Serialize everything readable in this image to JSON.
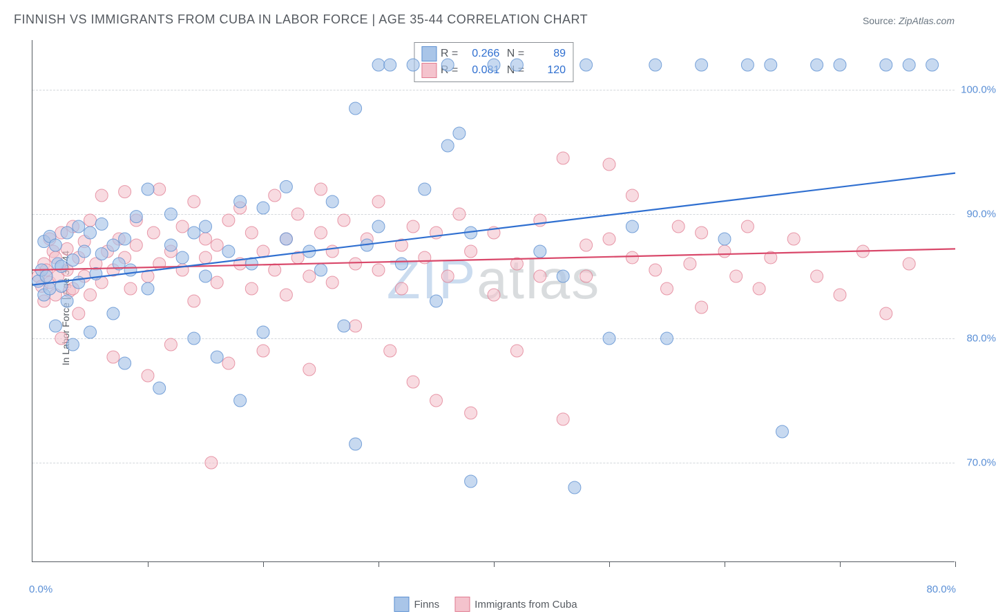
{
  "title": "FINNISH VS IMMIGRANTS FROM CUBA IN LABOR FORCE | AGE 35-44 CORRELATION CHART",
  "source_label": "Source:",
  "source_value": "ZipAtlas.com",
  "y_axis_label": "In Labor Force | Age 35-44",
  "watermark_a": "ZIP",
  "watermark_b": "atlas",
  "xlim": [
    0,
    80
  ],
  "ylim": [
    62,
    104
  ],
  "x_ticks_at": [
    0,
    10,
    20,
    30,
    40,
    50,
    60,
    70,
    80
  ],
  "x_tick_labels_shown": {
    "0": "0.0%",
    "80": "80.0%"
  },
  "y_gridlines": [
    70,
    80,
    90,
    100
  ],
  "y_tick_labels": {
    "70": "70.0%",
    "80": "80.0%",
    "90": "90.0%",
    "100": "100.0%"
  },
  "series": {
    "finns": {
      "label": "Finns",
      "fill": "#a9c5e8",
      "stroke": "#5b8fd1",
      "line_color": "#2f6fd0",
      "marker_radius": 9,
      "marker_opacity": 0.65,
      "line_width": 2.2,
      "R": "0.266",
      "N": "89",
      "trend": {
        "x1": 0,
        "y1": 84.3,
        "x2": 80,
        "y2": 93.3
      },
      "points": [
        [
          0.5,
          84.6
        ],
        [
          0.8,
          85.5
        ],
        [
          1.0,
          83.5
        ],
        [
          1.0,
          87.8
        ],
        [
          1.2,
          85.0
        ],
        [
          1.5,
          84.0
        ],
        [
          1.5,
          88.2
        ],
        [
          2.0,
          87.5
        ],
        [
          2.0,
          81.0
        ],
        [
          2.2,
          86.0
        ],
        [
          2.5,
          84.2
        ],
        [
          2.5,
          85.8
        ],
        [
          3.0,
          88.5
        ],
        [
          3.0,
          83.0
        ],
        [
          3.5,
          79.5
        ],
        [
          3.5,
          86.3
        ],
        [
          4.0,
          89.0
        ],
        [
          4.0,
          84.5
        ],
        [
          4.5,
          87.0
        ],
        [
          5.0,
          80.5
        ],
        [
          5.0,
          88.5
        ],
        [
          5.5,
          85.2
        ],
        [
          6.0,
          86.8
        ],
        [
          6.0,
          89.2
        ],
        [
          7.0,
          82.0
        ],
        [
          7.0,
          87.5
        ],
        [
          7.5,
          86.0
        ],
        [
          8.0,
          78.0
        ],
        [
          8.0,
          88.0
        ],
        [
          8.5,
          85.5
        ],
        [
          9.0,
          89.8
        ],
        [
          10.0,
          92.0
        ],
        [
          10.0,
          84.0
        ],
        [
          11.0,
          76.0
        ],
        [
          12.0,
          87.5
        ],
        [
          12.0,
          90.0
        ],
        [
          13.0,
          86.5
        ],
        [
          14.0,
          80.0
        ],
        [
          14.0,
          88.5
        ],
        [
          15.0,
          89.0
        ],
        [
          15.0,
          85.0
        ],
        [
          16.0,
          78.5
        ],
        [
          17.0,
          87.0
        ],
        [
          18.0,
          91.0
        ],
        [
          18.0,
          75.0
        ],
        [
          19.0,
          86.0
        ],
        [
          20.0,
          90.5
        ],
        [
          20.0,
          80.5
        ],
        [
          22.0,
          88.0
        ],
        [
          22.0,
          92.2
        ],
        [
          24.0,
          87.0
        ],
        [
          25.0,
          85.5
        ],
        [
          26.0,
          91.0
        ],
        [
          27.0,
          81.0
        ],
        [
          28.0,
          71.5
        ],
        [
          28.0,
          98.5
        ],
        [
          29.0,
          87.5
        ],
        [
          30.0,
          102.0
        ],
        [
          30.0,
          89.0
        ],
        [
          31.0,
          102.0
        ],
        [
          32.0,
          86.0
        ],
        [
          33.0,
          102.0
        ],
        [
          34.0,
          92.0
        ],
        [
          35.0,
          83.0
        ],
        [
          36.0,
          95.5
        ],
        [
          36.0,
          102.0
        ],
        [
          37.0,
          96.5
        ],
        [
          38.0,
          68.5
        ],
        [
          38.0,
          88.5
        ],
        [
          40.0,
          102.0
        ],
        [
          42.0,
          102.0
        ],
        [
          44.0,
          87.0
        ],
        [
          46.0,
          85.0
        ],
        [
          47.0,
          68.0
        ],
        [
          48.0,
          102.0
        ],
        [
          50.0,
          80.0
        ],
        [
          52.0,
          89.0
        ],
        [
          54.0,
          102.0
        ],
        [
          55.0,
          80.0
        ],
        [
          58.0,
          102.0
        ],
        [
          60.0,
          88.0
        ],
        [
          62.0,
          102.0
        ],
        [
          64.0,
          102.0
        ],
        [
          65.0,
          72.5
        ],
        [
          68.0,
          102.0
        ],
        [
          70.0,
          102.0
        ],
        [
          74.0,
          102.0
        ],
        [
          76.0,
          102.0
        ],
        [
          78.0,
          102.0
        ]
      ]
    },
    "cuba": {
      "label": "Immigrants from Cuba",
      "fill": "#f4c3cd",
      "stroke": "#e07a8f",
      "line_color": "#d9486a",
      "marker_radius": 9,
      "marker_opacity": 0.6,
      "line_width": 2.2,
      "R": "0.081",
      "N": "120",
      "trend": {
        "x1": 0,
        "y1": 85.5,
        "x2": 80,
        "y2": 87.2
      },
      "points": [
        [
          0.5,
          85.0
        ],
        [
          0.8,
          84.2
        ],
        [
          1.0,
          86.0
        ],
        [
          1.0,
          83.0
        ],
        [
          1.2,
          85.5
        ],
        [
          1.5,
          88.0
        ],
        [
          1.5,
          84.5
        ],
        [
          1.8,
          87.0
        ],
        [
          2.0,
          83.5
        ],
        [
          2.0,
          86.5
        ],
        [
          2.2,
          85.0
        ],
        [
          2.5,
          88.5
        ],
        [
          2.5,
          80.0
        ],
        [
          3.0,
          87.2
        ],
        [
          3.0,
          85.5
        ],
        [
          3.2,
          83.8
        ],
        [
          3.5,
          89.0
        ],
        [
          3.5,
          84.0
        ],
        [
          4.0,
          86.5
        ],
        [
          4.0,
          82.0
        ],
        [
          4.5,
          85.0
        ],
        [
          4.5,
          87.8
        ],
        [
          5.0,
          83.5
        ],
        [
          5.0,
          89.5
        ],
        [
          5.5,
          86.0
        ],
        [
          6.0,
          84.5
        ],
        [
          6.0,
          91.5
        ],
        [
          6.5,
          87.0
        ],
        [
          7.0,
          78.5
        ],
        [
          7.0,
          85.5
        ],
        [
          7.5,
          88.0
        ],
        [
          8.0,
          86.5
        ],
        [
          8.0,
          91.8
        ],
        [
          8.5,
          84.0
        ],
        [
          9.0,
          87.5
        ],
        [
          9.0,
          89.5
        ],
        [
          10.0,
          77.0
        ],
        [
          10.0,
          85.0
        ],
        [
          10.5,
          88.5
        ],
        [
          11.0,
          86.0
        ],
        [
          11.0,
          92.0
        ],
        [
          12.0,
          79.5
        ],
        [
          12.0,
          87.0
        ],
        [
          13.0,
          85.5
        ],
        [
          13.0,
          89.0
        ],
        [
          14.0,
          83.0
        ],
        [
          14.0,
          91.0
        ],
        [
          15.0,
          86.5
        ],
        [
          15.0,
          88.0
        ],
        [
          15.5,
          70.0
        ],
        [
          16.0,
          84.5
        ],
        [
          16.0,
          87.5
        ],
        [
          17.0,
          89.5
        ],
        [
          17.0,
          78.0
        ],
        [
          18.0,
          86.0
        ],
        [
          18.0,
          90.5
        ],
        [
          19.0,
          84.0
        ],
        [
          19.0,
          88.5
        ],
        [
          20.0,
          87.0
        ],
        [
          20.0,
          79.0
        ],
        [
          21.0,
          85.5
        ],
        [
          21.0,
          91.5
        ],
        [
          22.0,
          83.5
        ],
        [
          22.0,
          88.0
        ],
        [
          23.0,
          86.5
        ],
        [
          23.0,
          90.0
        ],
        [
          24.0,
          77.5
        ],
        [
          24.0,
          85.0
        ],
        [
          25.0,
          88.5
        ],
        [
          25.0,
          92.0
        ],
        [
          26.0,
          84.5
        ],
        [
          26.0,
          87.0
        ],
        [
          27.0,
          89.5
        ],
        [
          28.0,
          86.0
        ],
        [
          28.0,
          81.0
        ],
        [
          29.0,
          88.0
        ],
        [
          30.0,
          85.5
        ],
        [
          30.0,
          91.0
        ],
        [
          31.0,
          79.0
        ],
        [
          32.0,
          87.5
        ],
        [
          32.0,
          84.0
        ],
        [
          33.0,
          89.0
        ],
        [
          33.0,
          76.5
        ],
        [
          34.0,
          86.5
        ],
        [
          35.0,
          88.5
        ],
        [
          35.0,
          75.0
        ],
        [
          36.0,
          85.0
        ],
        [
          37.0,
          90.0
        ],
        [
          38.0,
          74.0
        ],
        [
          38.0,
          87.0
        ],
        [
          40.0,
          83.5
        ],
        [
          40.0,
          88.5
        ],
        [
          42.0,
          79.0
        ],
        [
          42.0,
          86.0
        ],
        [
          44.0,
          85.0
        ],
        [
          44.0,
          89.5
        ],
        [
          46.0,
          73.5
        ],
        [
          46.0,
          94.5
        ],
        [
          48.0,
          87.5
        ],
        [
          48.0,
          85.0
        ],
        [
          50.0,
          88.0
        ],
        [
          50.0,
          94.0
        ],
        [
          52.0,
          86.5
        ],
        [
          52.0,
          91.5
        ],
        [
          54.0,
          85.5
        ],
        [
          55.0,
          84.0
        ],
        [
          56.0,
          89.0
        ],
        [
          57.0,
          86.0
        ],
        [
          58.0,
          88.5
        ],
        [
          58.0,
          82.5
        ],
        [
          60.0,
          87.0
        ],
        [
          61.0,
          85.0
        ],
        [
          62.0,
          89.0
        ],
        [
          63.0,
          84.0
        ],
        [
          64.0,
          86.5
        ],
        [
          66.0,
          88.0
        ],
        [
          68.0,
          85.0
        ],
        [
          70.0,
          83.5
        ],
        [
          72.0,
          87.0
        ],
        [
          74.0,
          82.0
        ],
        [
          76.0,
          86.0
        ]
      ]
    }
  },
  "background_color": "#ffffff",
  "grid_color": "#d3d7db",
  "axis_color": "#555a60",
  "tick_label_color": "#5a8fd6",
  "text_color": "#555a60",
  "title_fontsize": 18,
  "label_fontsize": 14,
  "tick_fontsize": 15,
  "legend_stat_color": "#2f6fd0"
}
